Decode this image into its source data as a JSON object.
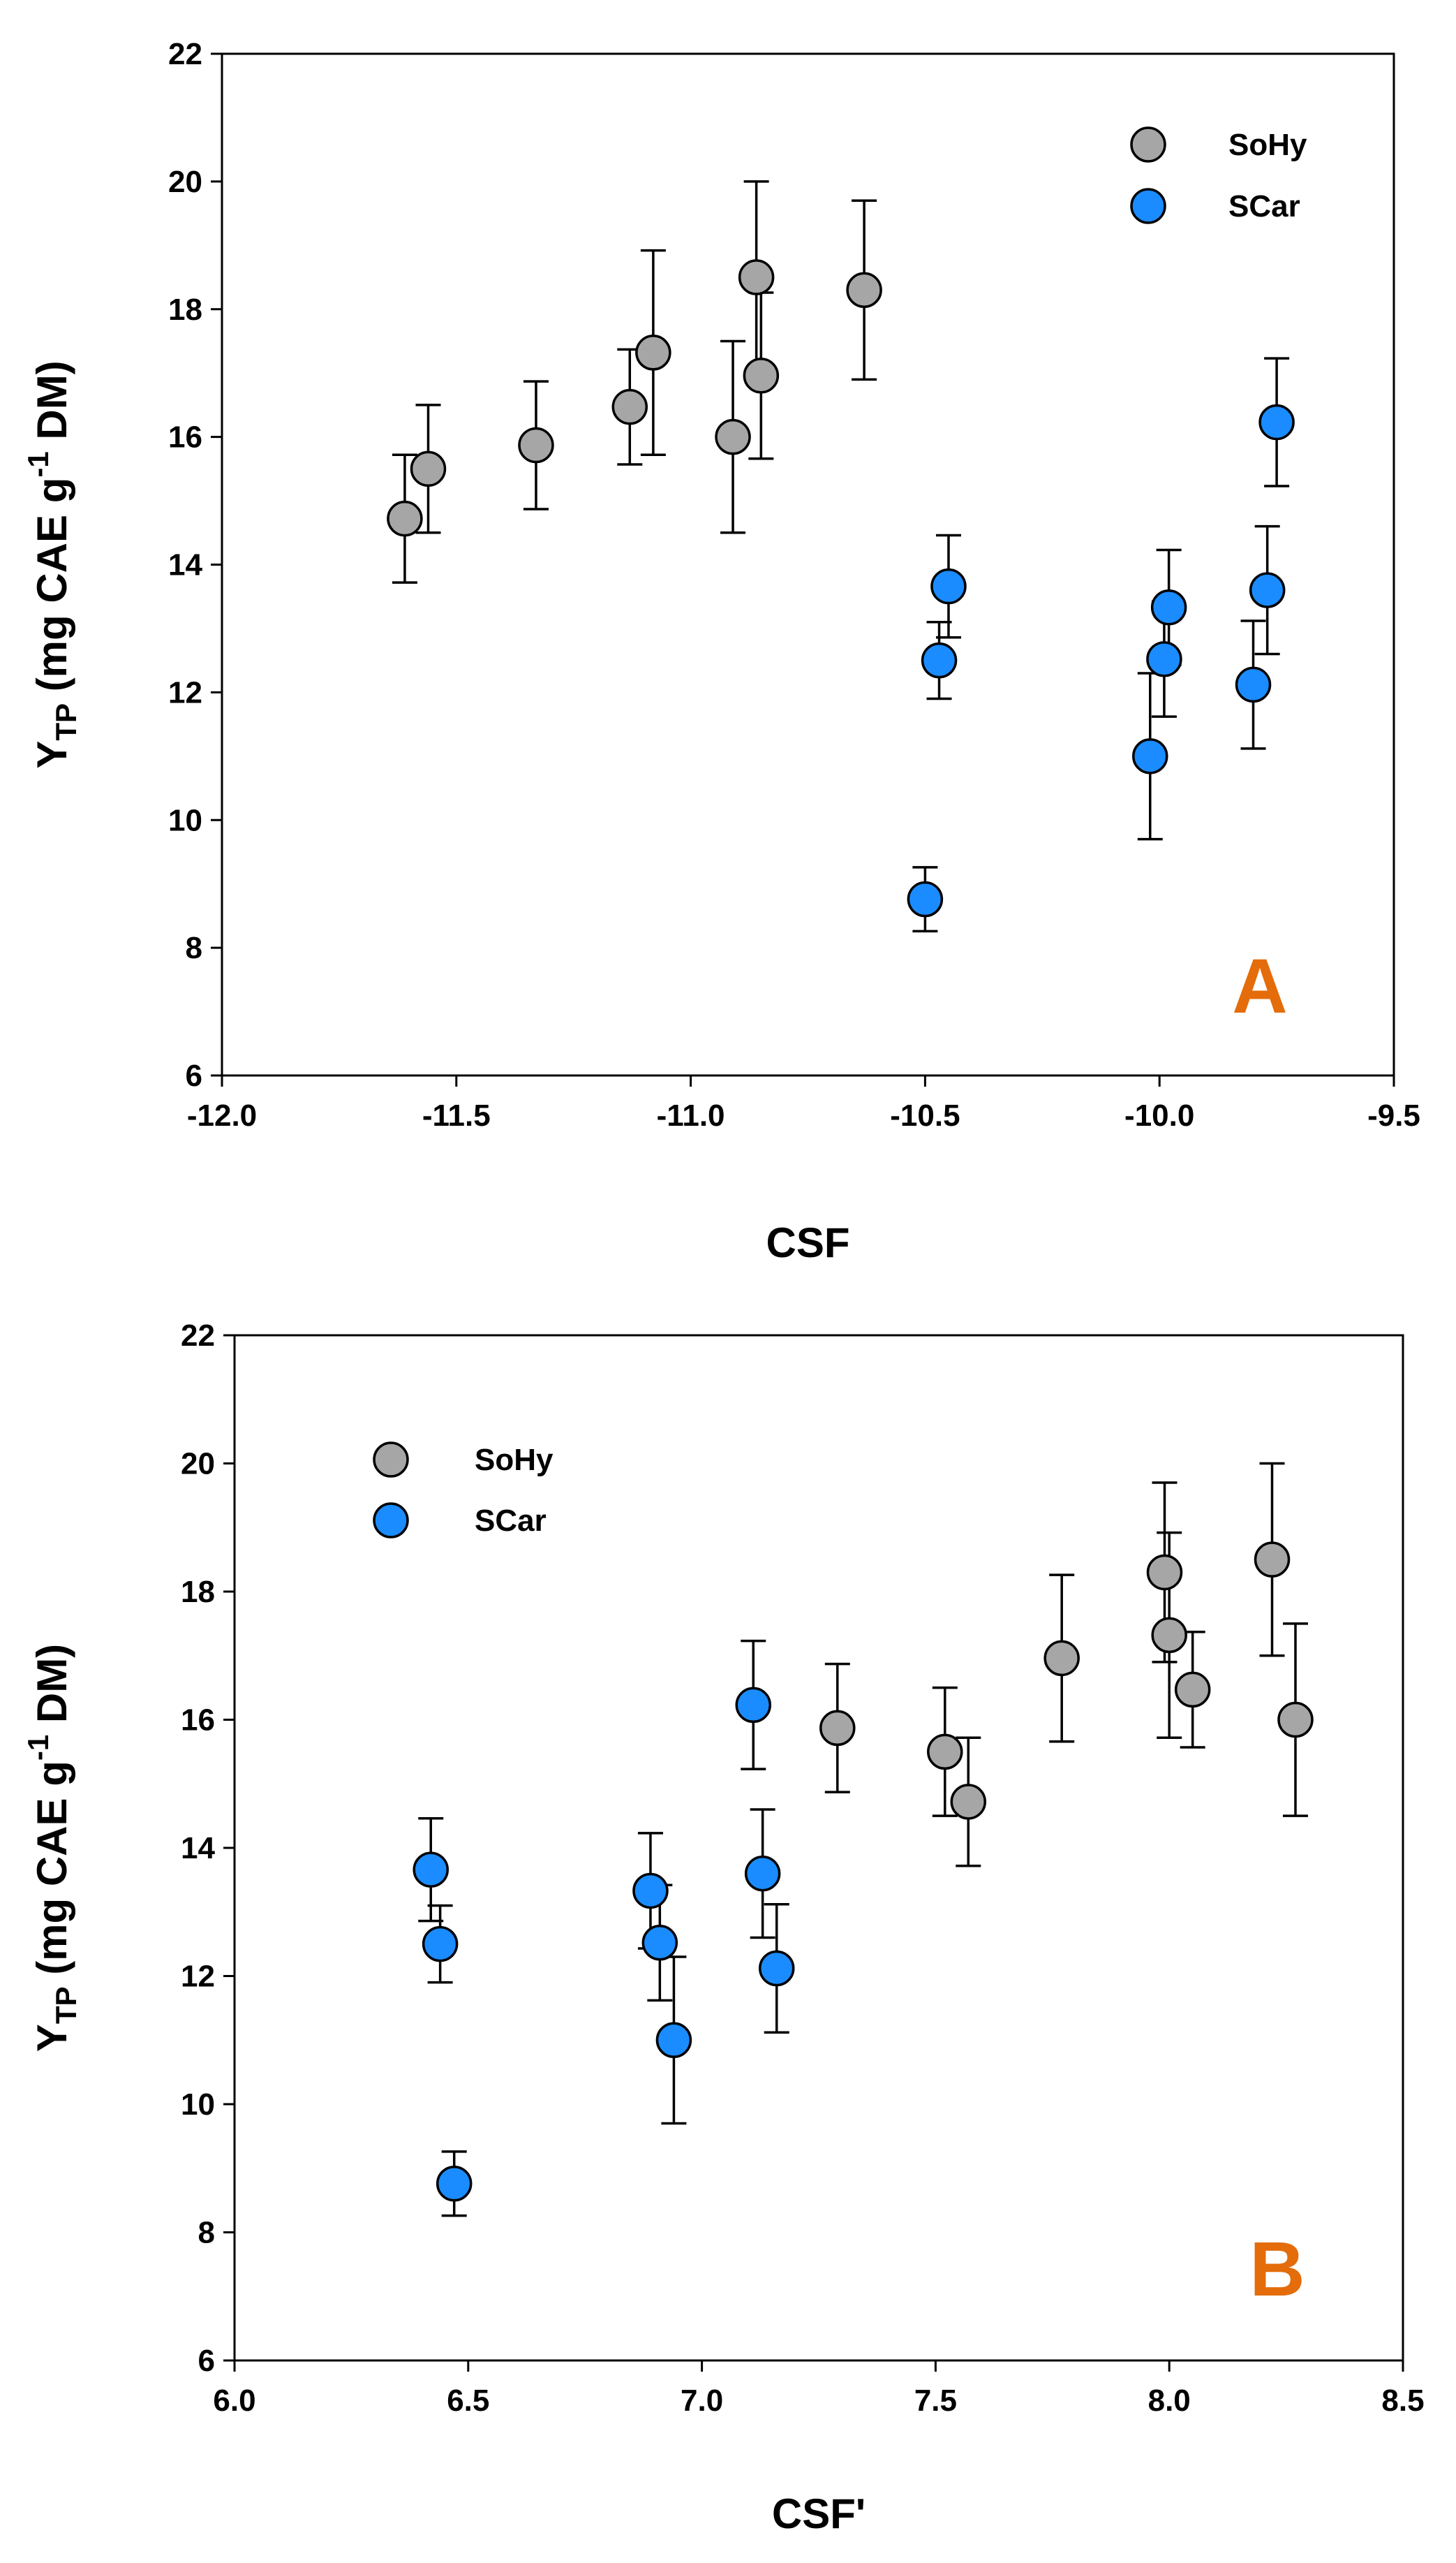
{
  "colors": {
    "SoHy": "#a6a6a6",
    "SCar": "#1a8cff",
    "panel_letter": "#e46c0a"
  },
  "chart_data": [
    {
      "type": "scatter",
      "panel_label": "A",
      "xlabel": "CSF",
      "ylabel": {
        "main": "Y",
        "sub": "TP",
        "unit_pre": " (mg CAE g",
        "sup": "-1",
        "unit_post": " DM)"
      },
      "xlim": [
        -12.0,
        -9.5
      ],
      "ylim": [
        6,
        22
      ],
      "xticks": [
        "-12.0",
        "-11.5",
        "-11.0",
        "-10.5",
        "-10.0",
        "-9.5"
      ],
      "xtick_values": [
        -12.0,
        -11.5,
        -11.0,
        -10.5,
        -10.0,
        -9.5
      ],
      "yticks": [
        "6",
        "8",
        "10",
        "12",
        "14",
        "16",
        "18",
        "20",
        "22"
      ],
      "ytick_values": [
        6,
        8,
        10,
        12,
        14,
        16,
        18,
        20,
        22
      ],
      "legend_position": "top-right",
      "series": [
        {
          "name": "SoHy",
          "color_key": "SoHy",
          "points": [
            {
              "x": -11.61,
              "y": 14.72,
              "err": 1.0
            },
            {
              "x": -11.56,
              "y": 15.5,
              "err": 1.0
            },
            {
              "x": -11.33,
              "y": 15.87,
              "err": 1.0
            },
            {
              "x": -11.13,
              "y": 16.47,
              "err": 0.9
            },
            {
              "x": -11.08,
              "y": 17.32,
              "err": 1.6
            },
            {
              "x": -10.91,
              "y": 16.0,
              "err": 1.5
            },
            {
              "x": -10.86,
              "y": 18.5,
              "err": 1.5
            },
            {
              "x": -10.85,
              "y": 16.96,
              "err": 1.3
            },
            {
              "x": -10.63,
              "y": 18.3,
              "err": 1.4
            }
          ]
        },
        {
          "name": "SCar",
          "color_key": "SCar",
          "points": [
            {
              "x": -10.5,
              "y": 8.76,
              "err": 0.5
            },
            {
              "x": -10.47,
              "y": 12.5,
              "err": 0.6
            },
            {
              "x": -10.45,
              "y": 13.66,
              "err": 0.8
            },
            {
              "x": -10.02,
              "y": 11.0,
              "err": 1.3
            },
            {
              "x": -9.99,
              "y": 12.52,
              "err": 0.9
            },
            {
              "x": -9.98,
              "y": 13.33,
              "err": 0.9
            },
            {
              "x": -9.8,
              "y": 12.12,
              "err": 1.0
            },
            {
              "x": -9.77,
              "y": 13.6,
              "err": 1.0
            },
            {
              "x": -9.75,
              "y": 16.23,
              "err": 1.0
            }
          ]
        }
      ]
    },
    {
      "type": "scatter",
      "panel_label": "B",
      "xlabel": "CSF'",
      "ylabel": {
        "main": "Y",
        "sub": "TP",
        "unit_pre": " (mg CAE g",
        "sup": "-1",
        "unit_post": " DM)"
      },
      "xlim": [
        6.0,
        8.5
      ],
      "ylim": [
        6,
        22
      ],
      "xticks": [
        "6.0",
        "6.5",
        "7.0",
        "7.5",
        "8.0",
        "8.5"
      ],
      "xtick_values": [
        6.0,
        6.5,
        7.0,
        7.5,
        8.0,
        8.5
      ],
      "yticks": [
        "6",
        "8",
        "10",
        "12",
        "14",
        "16",
        "18",
        "20",
        "22"
      ],
      "ytick_values": [
        6,
        8,
        10,
        12,
        14,
        16,
        18,
        20,
        22
      ],
      "legend_position": "top-left",
      "series": [
        {
          "name": "SoHy",
          "color_key": "SoHy",
          "points": [
            {
              "x": 7.29,
              "y": 15.87,
              "err": 1.0
            },
            {
              "x": 7.52,
              "y": 15.5,
              "err": 1.0
            },
            {
              "x": 7.57,
              "y": 14.72,
              "err": 1.0
            },
            {
              "x": 7.77,
              "y": 16.96,
              "err": 1.3
            },
            {
              "x": 7.99,
              "y": 18.3,
              "err": 1.4
            },
            {
              "x": 8.0,
              "y": 17.32,
              "err": 1.6
            },
            {
              "x": 8.05,
              "y": 16.47,
              "err": 0.9
            },
            {
              "x": 8.22,
              "y": 18.5,
              "err": 1.5
            },
            {
              "x": 8.27,
              "y": 16.0,
              "err": 1.5
            }
          ]
        },
        {
          "name": "SCar",
          "color_key": "SCar",
          "points": [
            {
              "x": 6.42,
              "y": 13.66,
              "err": 0.8
            },
            {
              "x": 6.44,
              "y": 12.5,
              "err": 0.6
            },
            {
              "x": 6.47,
              "y": 8.76,
              "err": 0.5
            },
            {
              "x": 6.89,
              "y": 13.33,
              "err": 0.9
            },
            {
              "x": 6.91,
              "y": 12.52,
              "err": 0.9
            },
            {
              "x": 6.94,
              "y": 11.0,
              "err": 1.3
            },
            {
              "x": 7.11,
              "y": 16.23,
              "err": 1.0
            },
            {
              "x": 7.13,
              "y": 13.6,
              "err": 1.0
            },
            {
              "x": 7.16,
              "y": 12.12,
              "err": 1.0
            }
          ]
        }
      ]
    }
  ]
}
